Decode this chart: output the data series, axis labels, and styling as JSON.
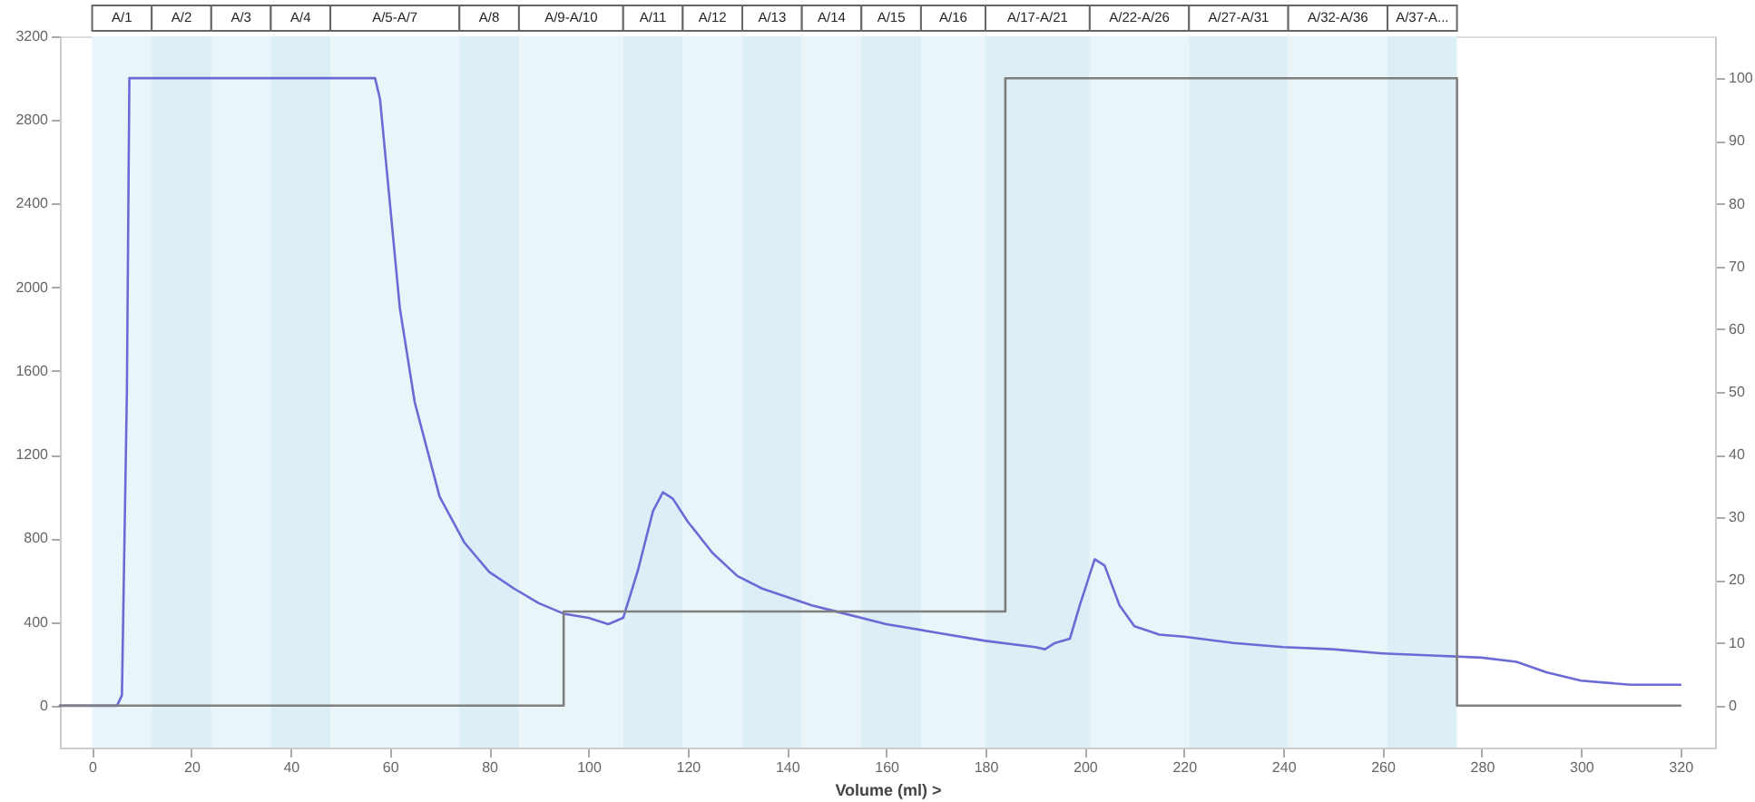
{
  "chart_data": {
    "type": "line",
    "xlabel": "Volume (ml) >",
    "xlim": [
      -6.5,
      327
    ],
    "xticks": [
      0,
      20,
      40,
      60,
      80,
      100,
      120,
      140,
      160,
      180,
      200,
      220,
      240,
      260,
      280,
      300,
      320
    ],
    "ylim": [
      -200,
      3200
    ],
    "yticks": [
      0,
      400,
      800,
      1200,
      1600,
      2000,
      2400,
      2800,
      3200
    ],
    "y2lim": [
      -6.7,
      106.7
    ],
    "y2ticks": [
      0,
      10,
      20,
      30,
      40,
      50,
      60,
      70,
      80,
      90,
      100
    ],
    "grid": false,
    "bands": [
      {
        "axis": "x",
        "from": 0,
        "to": 12,
        "label": "A/1",
        "color": "#eaf5f9"
      },
      {
        "axis": "x",
        "from": 12,
        "to": 24,
        "label": "A/2",
        "color": "#dceff6"
      },
      {
        "axis": "x",
        "from": 24,
        "to": 36,
        "label": "A/3",
        "color": "#eaf5f9"
      },
      {
        "axis": "x",
        "from": 36,
        "to": 48,
        "label": "A/4",
        "color": "#dceff6"
      },
      {
        "axis": "x",
        "from": 48,
        "to": 74,
        "label": "A/5-A/7",
        "color": "#eaf5f9"
      },
      {
        "axis": "x",
        "from": 74,
        "to": 86,
        "label": "A/8",
        "color": "#dceff6"
      },
      {
        "axis": "x",
        "from": 86,
        "to": 107,
        "label": "A/9-A/10",
        "color": "#eaf5f9"
      },
      {
        "axis": "x",
        "from": 107,
        "to": 119,
        "label": "A/11",
        "color": "#dceff6"
      },
      {
        "axis": "x",
        "from": 119,
        "to": 131,
        "label": "A/12",
        "color": "#eaf5f9"
      },
      {
        "axis": "x",
        "from": 131,
        "to": 143,
        "label": "A/13",
        "color": "#dceff6"
      },
      {
        "axis": "x",
        "from": 143,
        "to": 155,
        "label": "A/14",
        "color": "#eaf5f9"
      },
      {
        "axis": "x",
        "from": 155,
        "to": 167,
        "label": "A/15",
        "color": "#dceff6"
      },
      {
        "axis": "x",
        "from": 167,
        "to": 180,
        "label": "A/16",
        "color": "#eaf5f9"
      },
      {
        "axis": "x",
        "from": 180,
        "to": 201,
        "label": "A/17-A/21",
        "color": "#dceff6"
      },
      {
        "axis": "x",
        "from": 201,
        "to": 221,
        "label": "A/22-A/26",
        "color": "#eaf5f9"
      },
      {
        "axis": "x",
        "from": 221,
        "to": 241,
        "label": "A/27-A/31",
        "color": "#dceff6"
      },
      {
        "axis": "x",
        "from": 241,
        "to": 261,
        "label": "A/32-A/36",
        "color": "#eaf5f9"
      },
      {
        "axis": "x",
        "from": 261,
        "to": 275,
        "label": "A/37-A...",
        "color": "#dceff6"
      }
    ],
    "series": [
      {
        "color": "#6b6bd6",
        "x": [
          -6.5,
          5,
          6,
          7,
          7.5,
          57,
          58,
          60,
          62,
          65,
          70,
          75,
          80,
          85,
          90,
          95,
          100,
          104,
          107,
          110,
          113,
          115,
          117,
          120,
          125,
          130,
          135,
          140,
          145,
          150,
          160,
          170,
          180,
          190,
          192,
          194,
          197,
          199,
          202,
          204,
          207,
          210,
          215,
          220,
          230,
          240,
          250,
          260,
          270,
          280,
          287,
          293,
          300,
          310,
          320
        ],
        "values": [
          0,
          0,
          50,
          1500,
          3000,
          3000,
          2900,
          2400,
          1900,
          1450,
          1000,
          780,
          640,
          560,
          490,
          440,
          420,
          390,
          420,
          650,
          930,
          1020,
          990,
          880,
          730,
          620,
          560,
          520,
          480,
          450,
          390,
          350,
          310,
          280,
          270,
          300,
          320,
          480,
          700,
          670,
          480,
          380,
          340,
          330,
          300,
          280,
          270,
          250,
          240,
          230,
          210,
          160,
          120,
          100,
          100
        ]
      },
      {
        "type": "step",
        "axis": "y2",
        "color": "#7f7f7f",
        "x": [
          -6.5,
          95,
          184,
          275,
          320
        ],
        "values": [
          0,
          15,
          100,
          0,
          0
        ]
      }
    ]
  }
}
